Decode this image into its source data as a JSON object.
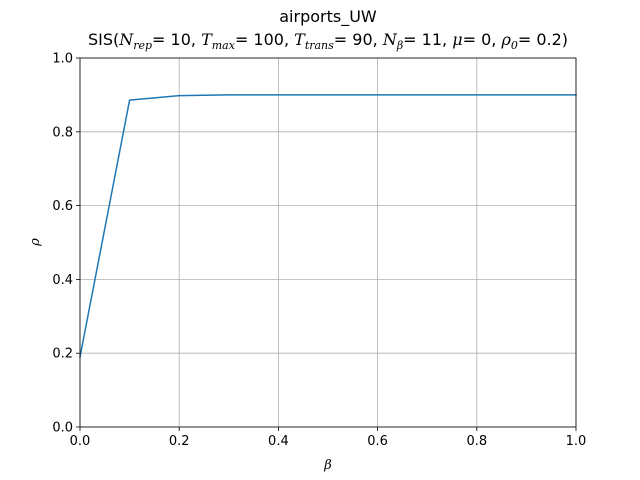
{
  "chart_data": {
    "type": "line",
    "title": "airports_UW",
    "subtitle": {
      "prefix": "SIS(",
      "parts": [
        {
          "sym": "N",
          "sub": "rep",
          "val": "= 10"
        },
        {
          "sym": "T",
          "sub": "max",
          "val": "= 100"
        },
        {
          "sym": "T",
          "sub": "trans",
          "val": "= 90"
        },
        {
          "sym": "N",
          "sub": "β",
          "val": "= 11"
        },
        {
          "sym": "μ",
          "sub": "",
          "val": "= 0"
        },
        {
          "sym": "ρ",
          "sub": "0",
          "val": "= 0.2"
        }
      ],
      "suffix": ")"
    },
    "xlabel": "β",
    "ylabel": "ρ",
    "xlim": [
      0,
      1
    ],
    "ylim": [
      0,
      1
    ],
    "xticks": [
      "0.0",
      "0.2",
      "0.4",
      "0.6",
      "0.8",
      "1.0"
    ],
    "yticks": [
      "0.0",
      "0.2",
      "0.4",
      "0.6",
      "0.8",
      "1.0"
    ],
    "grid": true,
    "series": [
      {
        "color": "#1f77b4",
        "x": [
          0.0,
          0.1,
          0.2,
          0.3,
          0.4,
          0.5,
          0.6,
          0.7,
          0.8,
          0.9,
          1.0
        ],
        "y": [
          0.19,
          0.886,
          0.898,
          0.9,
          0.9,
          0.9,
          0.9,
          0.9,
          0.9,
          0.9,
          0.9
        ]
      }
    ]
  }
}
